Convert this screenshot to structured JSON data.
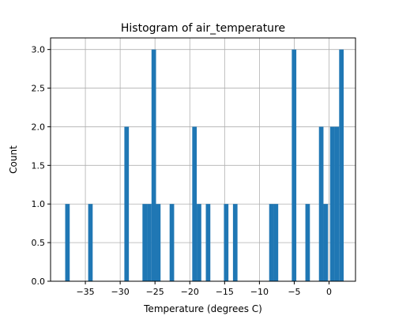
{
  "chart_data": {
    "type": "bar",
    "title": "Histogram of air_temperature",
    "xlabel": "Temperature (degrees C)",
    "ylabel": "Count",
    "xlim": [
      -40,
      3.8
    ],
    "ylim": [
      0,
      3.15
    ],
    "xticks": [
      -35,
      -30,
      -25,
      -20,
      -15,
      -10,
      -5,
      0
    ],
    "xtick_labels": [
      "−35",
      "−30",
      "−25",
      "−20",
      "−15",
      "−10",
      "−5",
      "0"
    ],
    "yticks": [
      0.0,
      0.5,
      1.0,
      1.5,
      2.0,
      2.5,
      3.0
    ],
    "ytick_labels": [
      "0.0",
      "0.5",
      "1.0",
      "1.5",
      "2.0",
      "2.5",
      "3.0"
    ],
    "grid": true,
    "bar_color": "#1f77b4",
    "bins": [
      {
        "x0": -37.9,
        "x1": -37.25,
        "count": 1
      },
      {
        "x0": -34.6,
        "x1": -33.95,
        "count": 1
      },
      {
        "x0": -29.4,
        "x1": -28.75,
        "count": 2
      },
      {
        "x0": -26.8,
        "x1": -26.15,
        "count": 1
      },
      {
        "x0": -26.15,
        "x1": -25.5,
        "count": 1
      },
      {
        "x0": -25.5,
        "x1": -24.85,
        "count": 3
      },
      {
        "x0": -24.85,
        "x1": -24.2,
        "count": 1
      },
      {
        "x0": -22.9,
        "x1": -22.25,
        "count": 1
      },
      {
        "x0": -19.65,
        "x1": -19.0,
        "count": 2
      },
      {
        "x0": -19.0,
        "x1": -18.35,
        "count": 1
      },
      {
        "x0": -17.7,
        "x1": -17.05,
        "count": 1
      },
      {
        "x0": -15.1,
        "x1": -14.45,
        "count": 1
      },
      {
        "x0": -13.8,
        "x1": -13.15,
        "count": 1
      },
      {
        "x0": -8.6,
        "x1": -7.95,
        "count": 1
      },
      {
        "x0": -7.95,
        "x1": -7.3,
        "count": 1
      },
      {
        "x0": -5.35,
        "x1": -4.7,
        "count": 3
      },
      {
        "x0": -3.4,
        "x1": -2.75,
        "count": 1
      },
      {
        "x0": -1.45,
        "x1": -0.8,
        "count": 2
      },
      {
        "x0": -0.8,
        "x1": -0.15,
        "count": 1
      },
      {
        "x0": 0.15,
        "x1": 0.8,
        "count": 2
      },
      {
        "x0": 0.8,
        "x1": 1.45,
        "count": 2
      },
      {
        "x0": 1.45,
        "x1": 2.1,
        "count": 3
      }
    ]
  }
}
